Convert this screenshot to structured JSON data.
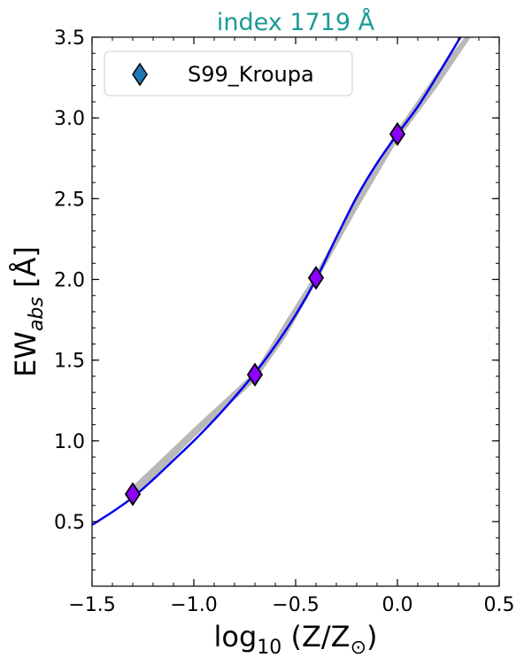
{
  "chart_data": {
    "type": "line",
    "title": "index 1719 Å",
    "title_color": "#1a9c96",
    "xlabel": "log10 (Z/Z⊙)",
    "ylabel": "EWabs [Å]",
    "xlim": [
      -1.5,
      0.5
    ],
    "ylim": [
      0.1,
      3.5
    ],
    "xticks": [
      {
        "value": -1.5,
        "label": "−1.5"
      },
      {
        "value": -1.0,
        "label": "−1.0"
      },
      {
        "value": -0.5,
        "label": "−0.5"
      },
      {
        "value": 0.0,
        "label": "0.0"
      },
      {
        "value": 0.5,
        "label": "0.5"
      }
    ],
    "yticks": [
      {
        "value": 0.5,
        "label": "0.5"
      },
      {
        "value": 1.0,
        "label": "1.0"
      },
      {
        "value": 1.5,
        "label": "1.5"
      },
      {
        "value": 2.0,
        "label": "2.0"
      },
      {
        "value": 2.5,
        "label": "2.5"
      },
      {
        "value": 3.0,
        "label": "3.0"
      },
      {
        "value": 3.5,
        "label": "3.5"
      }
    ],
    "grid": false,
    "legend_position": "top-left",
    "series": [
      {
        "name": "S99_Kroupa",
        "marker": "diamond",
        "marker_color": "#8b00ff",
        "legend_marker_color": "#1f77b4",
        "points": [
          {
            "x": -1.3,
            "y": 0.67
          },
          {
            "x": -0.7,
            "y": 1.41
          },
          {
            "x": -0.4,
            "y": 2.01
          },
          {
            "x": 0.0,
            "y": 2.9
          }
        ]
      }
    ],
    "fit_curve": {
      "color": "#0000ee",
      "points": [
        {
          "x": -1.5,
          "y": 0.48
        },
        {
          "x": -1.4,
          "y": 0.56
        },
        {
          "x": -1.3,
          "y": 0.65
        },
        {
          "x": -1.2,
          "y": 0.76
        },
        {
          "x": -1.1,
          "y": 0.88
        },
        {
          "x": -1.0,
          "y": 1.0
        },
        {
          "x": -0.9,
          "y": 1.13
        },
        {
          "x": -0.8,
          "y": 1.27
        },
        {
          "x": -0.7,
          "y": 1.42
        },
        {
          "x": -0.6,
          "y": 1.59
        },
        {
          "x": -0.5,
          "y": 1.78
        },
        {
          "x": -0.4,
          "y": 2.0
        },
        {
          "x": -0.3,
          "y": 2.26
        },
        {
          "x": -0.2,
          "y": 2.51
        },
        {
          "x": -0.1,
          "y": 2.72
        },
        {
          "x": 0.0,
          "y": 2.9
        },
        {
          "x": 0.1,
          "y": 3.07
        },
        {
          "x": 0.2,
          "y": 3.27
        },
        {
          "x": 0.3,
          "y": 3.48
        },
        {
          "x": 0.31,
          "y": 3.5
        }
      ]
    },
    "uncertainty_band": {
      "color": "#b8b8b8",
      "upper": [
        {
          "x": -1.3,
          "y": 0.72
        },
        {
          "x": -1.0,
          "y": 1.08
        },
        {
          "x": -0.7,
          "y": 1.43
        },
        {
          "x": -0.55,
          "y": 1.74
        },
        {
          "x": -0.4,
          "y": 2.04
        },
        {
          "x": -0.2,
          "y": 2.5
        },
        {
          "x": 0.0,
          "y": 2.93
        },
        {
          "x": 0.2,
          "y": 3.29
        },
        {
          "x": 0.33,
          "y": 3.5
        }
      ],
      "lower": [
        {
          "x": 0.36,
          "y": 3.5
        },
        {
          "x": 0.2,
          "y": 3.2
        },
        {
          "x": 0.0,
          "y": 2.86
        },
        {
          "x": -0.2,
          "y": 2.43
        },
        {
          "x": -0.4,
          "y": 1.98
        },
        {
          "x": -0.55,
          "y": 1.64
        },
        {
          "x": -0.7,
          "y": 1.37
        },
        {
          "x": -1.0,
          "y": 1.02
        },
        {
          "x": -1.3,
          "y": 0.64
        }
      ]
    }
  }
}
